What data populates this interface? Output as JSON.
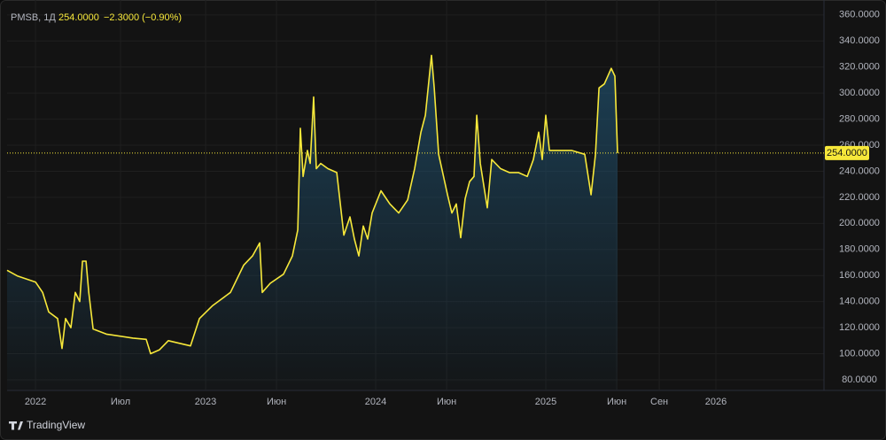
{
  "header": {
    "symbol": "PMSB, 1Д",
    "price": "254.0000",
    "change": "−2.3000 (−0.90%)"
  },
  "brand": "TradingView",
  "chart_data": {
    "type": "line",
    "color": "#f7e83a",
    "grid": true,
    "price_line": {
      "value": 254,
      "label": "254.0000"
    },
    "xlim": [
      2021.833,
      2026.625
    ],
    "ylim": [
      72.5,
      366
    ],
    "xticks": [
      {
        "value": 2022,
        "label": "2022"
      },
      {
        "value": 2022.5,
        "label": "Июл"
      },
      {
        "value": 2023,
        "label": "2023"
      },
      {
        "value": 2023.417,
        "label": "Июн"
      },
      {
        "value": 2024,
        "label": "2024"
      },
      {
        "value": 2024.417,
        "label": "Июн"
      },
      {
        "value": 2025,
        "label": "2025"
      },
      {
        "value": 2025.417,
        "label": "Июн"
      },
      {
        "value": 2025.667,
        "label": "Сен"
      },
      {
        "value": 2026,
        "label": "2026"
      }
    ],
    "yticks": [
      {
        "value": 80,
        "label": "80.0000"
      },
      {
        "value": 100,
        "label": "100.0000"
      },
      {
        "value": 120,
        "label": "120.0000"
      },
      {
        "value": 140,
        "label": "140.0000"
      },
      {
        "value": 160,
        "label": "160.0000"
      },
      {
        "value": 180,
        "label": "180.0000"
      },
      {
        "value": 200,
        "label": "200.0000"
      },
      {
        "value": 220,
        "label": "220.0000"
      },
      {
        "value": 240,
        "label": "240.0000"
      },
      {
        "value": 260,
        "label": "260.0000"
      },
      {
        "value": 280,
        "label": "280.0000"
      },
      {
        "value": 300,
        "label": "300.0000"
      },
      {
        "value": 320,
        "label": "320.0000"
      },
      {
        "value": 340,
        "label": "340.0000"
      },
      {
        "value": 360,
        "label": "360.0000"
      }
    ],
    "x": [
      2021.833,
      2021.896,
      2022.0,
      2022.042,
      2022.078,
      2022.13,
      2022.156,
      2022.177,
      2022.208,
      2022.234,
      2022.26,
      2022.276,
      2022.297,
      2022.313,
      2022.339,
      2022.417,
      2022.573,
      2022.651,
      2022.677,
      2022.729,
      2022.781,
      2022.911,
      2022.964,
      2023.042,
      2023.146,
      2023.224,
      2023.276,
      2023.318,
      2023.333,
      2023.38,
      2023.458,
      2023.51,
      2023.542,
      2023.557,
      2023.573,
      2023.599,
      2023.615,
      2023.635,
      2023.651,
      2023.677,
      2023.719,
      2023.771,
      2023.813,
      2023.849,
      2023.875,
      2023.901,
      2023.927,
      2023.953,
      2023.979,
      2024.031,
      2024.083,
      2024.135,
      2024.188,
      2024.229,
      2024.266,
      2024.292,
      2024.328,
      2024.344,
      2024.37,
      2024.422,
      2024.448,
      2024.474,
      2024.5,
      2024.526,
      2024.552,
      2024.578,
      2024.594,
      2024.615,
      2024.656,
      2024.682,
      2024.734,
      2024.786,
      2024.839,
      2024.891,
      2024.927,
      2024.958,
      2024.979,
      2025.0,
      2025.021,
      2025.073,
      2025.151,
      2025.229,
      2025.266,
      2025.292,
      2025.313,
      2025.344,
      2025.385,
      2025.406,
      2025.422
    ],
    "values": [
      164,
      159.5,
      155,
      147,
      132,
      127,
      104,
      127,
      120,
      147,
      140,
      171,
      171,
      147,
      119,
      115,
      112,
      111,
      100,
      103,
      110,
      106,
      127,
      137,
      147,
      168,
      175,
      185,
      147,
      154,
      161,
      175,
      195,
      273,
      236,
      256,
      246,
      297,
      242,
      246,
      242,
      239,
      191,
      205,
      188,
      175,
      198,
      188,
      208,
      225,
      215,
      208,
      218,
      242,
      270,
      283,
      329,
      304,
      253,
      222,
      208,
      215,
      189,
      219,
      232,
      236,
      283,
      246,
      212,
      249,
      242,
      239,
      239,
      236,
      249,
      270,
      249,
      283,
      256,
      256,
      256,
      253,
      222,
      253,
      304,
      307,
      319,
      313,
      254
    ]
  }
}
